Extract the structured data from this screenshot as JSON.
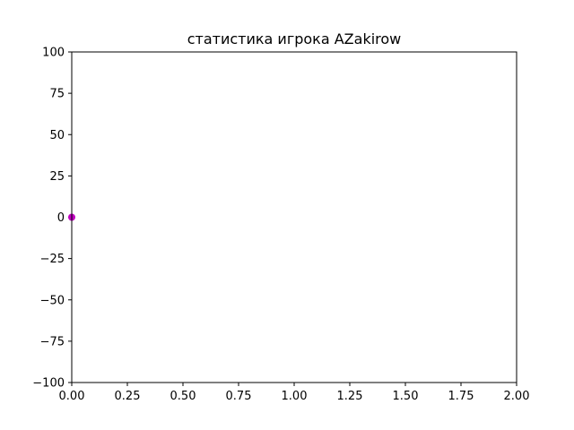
{
  "chart_data": {
    "type": "scatter",
    "title": "статистика игрока AZakirow",
    "xlabel": "",
    "ylabel": "",
    "xlim": [
      0,
      2
    ],
    "ylim": [
      -100,
      100
    ],
    "x_ticks": [
      "0.00",
      "0.25",
      "0.50",
      "0.75",
      "1.00",
      "1.25",
      "1.50",
      "1.75",
      "2.00"
    ],
    "y_ticks": [
      "100",
      "75",
      "50",
      "25",
      "0",
      "−25",
      "−50",
      "−75",
      "−100"
    ],
    "grid": false,
    "series": [
      {
        "x": [
          0
        ],
        "y": [
          0
        ],
        "color": "#bf00bf"
      }
    ]
  }
}
